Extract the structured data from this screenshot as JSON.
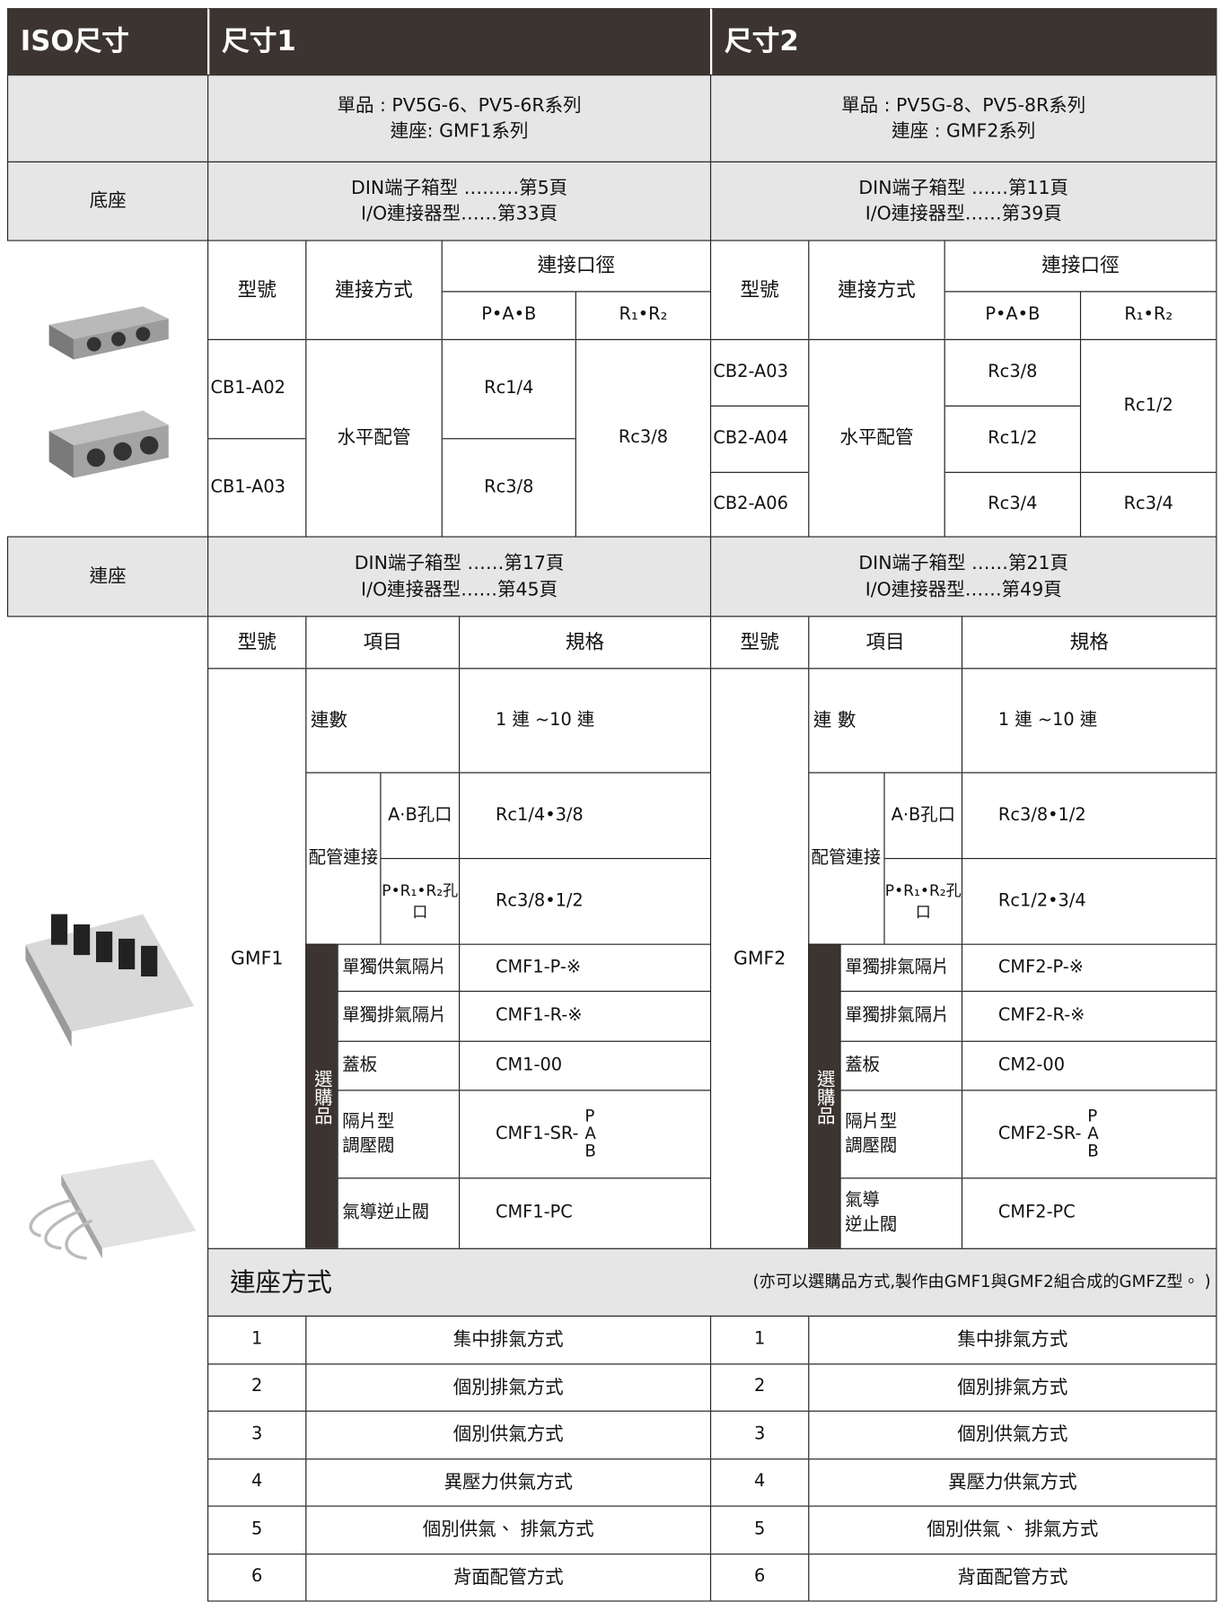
{
  "header": {
    "iso_size": "ISO尺寸",
    "size1": "尺寸1",
    "size2": "尺寸2"
  },
  "series": {
    "size1": [
      "單品 : PV5G-6、PV5-6R系列",
      "連座: GMF1系列"
    ],
    "size2": [
      "單品 : PV5G-8、PV5-8R系列",
      "連座 : GMF2系列"
    ]
  },
  "base": {
    "label": "底座",
    "size1": [
      "DIN端子箱型 ………第5頁",
      "I/O連接器型……第33頁"
    ],
    "size2": [
      "DIN端子箱型 ……第11頁",
      "I/O連接器型……第39頁"
    ]
  },
  "base_table": {
    "size1": {
      "columns": [
        "型號",
        "連接方式",
        "連接口徑",
        "P•A•B",
        "R₁•R₂"
      ],
      "models": [
        "CB1-A02",
        "CB1-A03"
      ],
      "connection": "水平配管",
      "pab": [
        "Rc1/4",
        "Rc3/8"
      ],
      "r": [
        "Rc3/8"
      ]
    },
    "size2": {
      "columns": [
        "型號",
        "連接方式",
        "連接口徑",
        "P•A•B",
        "R₁•R₂"
      ],
      "models": [
        "CB2-A03",
        "CB2-A04",
        "CB2-A06"
      ],
      "connection": "水平配管",
      "pab": [
        "Rc3/8",
        "Rc1/2",
        "Rc3/4"
      ],
      "r": [
        "Rc1/2",
        "Rc3/4"
      ]
    }
  },
  "manifold": {
    "label": "連座",
    "size1": [
      "DIN端子箱型 ……第17頁",
      "I/O連接器型……第45頁"
    ],
    "size2": [
      "DIN端子箱型 ……第21頁",
      "I/O連接器型……第49頁"
    ]
  },
  "manifold_table": {
    "size1": {
      "columns": [
        "型號",
        "項目",
        "規格"
      ],
      "model": "GMF1",
      "count": {
        "item": "連數",
        "spec": "1 連 ~10 連"
      },
      "piping": {
        "label": "配管連接",
        "items": [
          {
            "item": "A·B孔口",
            "spec": "Rc1/4•3/8"
          },
          {
            "item": "P•R₁•R₂孔口",
            "spec": "Rc3/8•1/2"
          }
        ]
      },
      "options": {
        "label": "選購品",
        "items": [
          {
            "item": "單獨供氣隔片",
            "spec": "CMF1-P-※"
          },
          {
            "item": "單獨排氣隔片",
            "spec": "CMF1-R-※"
          },
          {
            "item": "蓋板",
            "spec": "CM1-00"
          },
          {
            "item": [
              "隔片型",
              "調壓閥"
            ],
            "spec": "CMF1-SR-",
            "variants": [
              "P",
              "A",
              "B"
            ]
          },
          {
            "item": "氣導逆止閥",
            "spec": "CMF1-PC"
          }
        ]
      }
    },
    "size2": {
      "columns": [
        "型號",
        "項目",
        "規格"
      ],
      "model": "GMF2",
      "count": {
        "item": "連 數",
        "spec": "1 連 ~10 連"
      },
      "piping": {
        "label": "配管連接",
        "items": [
          {
            "item": "A·B孔口",
            "spec": "Rc3/8•1/2"
          },
          {
            "item": "P•R₁•R₂孔口",
            "spec": "Rc1/2•3/4"
          }
        ]
      },
      "options": {
        "label": "選購品",
        "items": [
          {
            "item": "單獨排氣隔片",
            "spec": "CMF2-P-※"
          },
          {
            "item": "單獨排氣隔片",
            "spec": "CMF2-R-※"
          },
          {
            "item": "蓋板",
            "spec": "CM2-00"
          },
          {
            "item": [
              "隔片型",
              "調壓閥"
            ],
            "spec": "CMF2-SR-",
            "variants": [
              "P",
              "A",
              "B"
            ]
          },
          {
            "item": [
              "氣導",
              "逆止閥"
            ],
            "spec": "CMF2-PC"
          }
        ]
      }
    }
  },
  "methods": {
    "title": "連座方式",
    "note": "(亦可以選購品方式,製作由GMF1與GMF2組合成的GMFZ型。 )",
    "size1": [
      {
        "no": 1,
        "name": "集中排氣方式"
      },
      {
        "no": 2,
        "name": "個別排氣方式"
      },
      {
        "no": 3,
        "name": "個別供氣方式"
      },
      {
        "no": 4,
        "name": "異壓力供氣方式"
      },
      {
        "no": 5,
        "name": "個別供氣、 排氣方式"
      },
      {
        "no": 6,
        "name": "背面配管方式"
      }
    ],
    "size2": [
      {
        "no": 1,
        "name": "集中排氣方式"
      },
      {
        "no": 2,
        "name": "個別排氣方式"
      },
      {
        "no": 3,
        "name": "個別供氣方式"
      },
      {
        "no": 4,
        "name": "異壓力供氣方式"
      },
      {
        "no": 5,
        "name": "個別供氣、 排氣方式"
      },
      {
        "no": 6,
        "name": "背面配管方式"
      }
    ]
  }
}
